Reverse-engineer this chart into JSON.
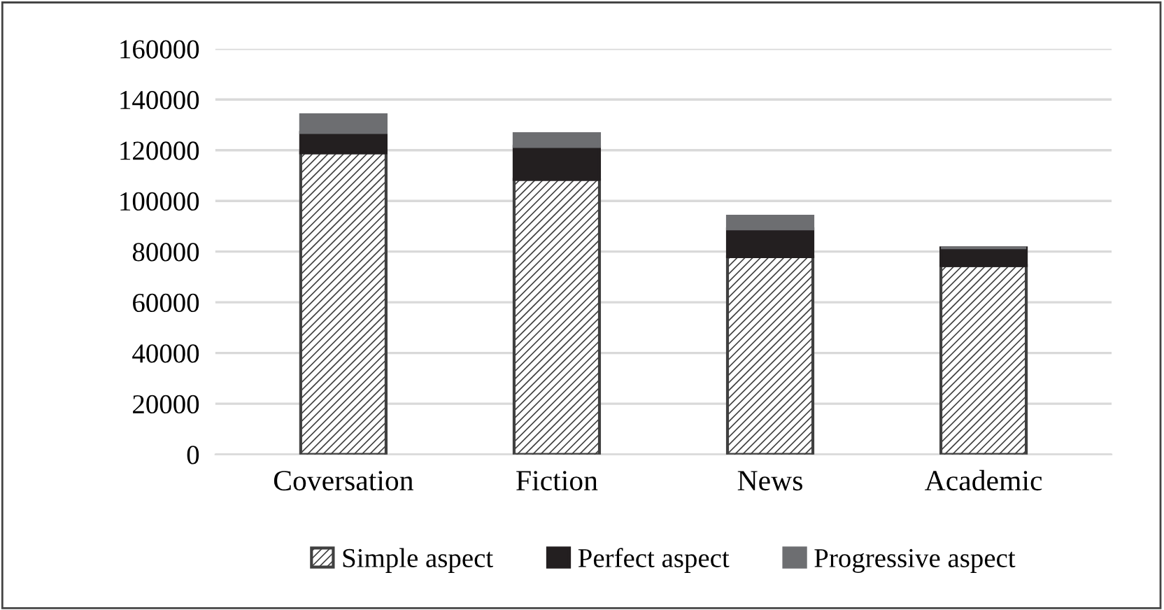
{
  "chart_data": {
    "type": "bar",
    "stacked": true,
    "categories": [
      "Coversation",
      "Fiction",
      "News",
      "Academic"
    ],
    "series": [
      {
        "name": "Simple aspect",
        "color": "#404040",
        "values": [
          119000,
          108500,
          78000,
          74500
        ]
      },
      {
        "name": "Perfect aspect",
        "color": "#231f20",
        "values": [
          8000,
          13000,
          11000,
          7000
        ]
      },
      {
        "name": "Progressive aspect",
        "color": "#6d6e71",
        "values": [
          7000,
          5000,
          5000,
          0
        ]
      }
    ],
    "ylim": [
      0,
      160000
    ],
    "yticks": [
      0,
      20000,
      40000,
      60000,
      80000,
      100000,
      120000,
      140000,
      160000
    ],
    "grid": "y",
    "legend": "bottom"
  }
}
